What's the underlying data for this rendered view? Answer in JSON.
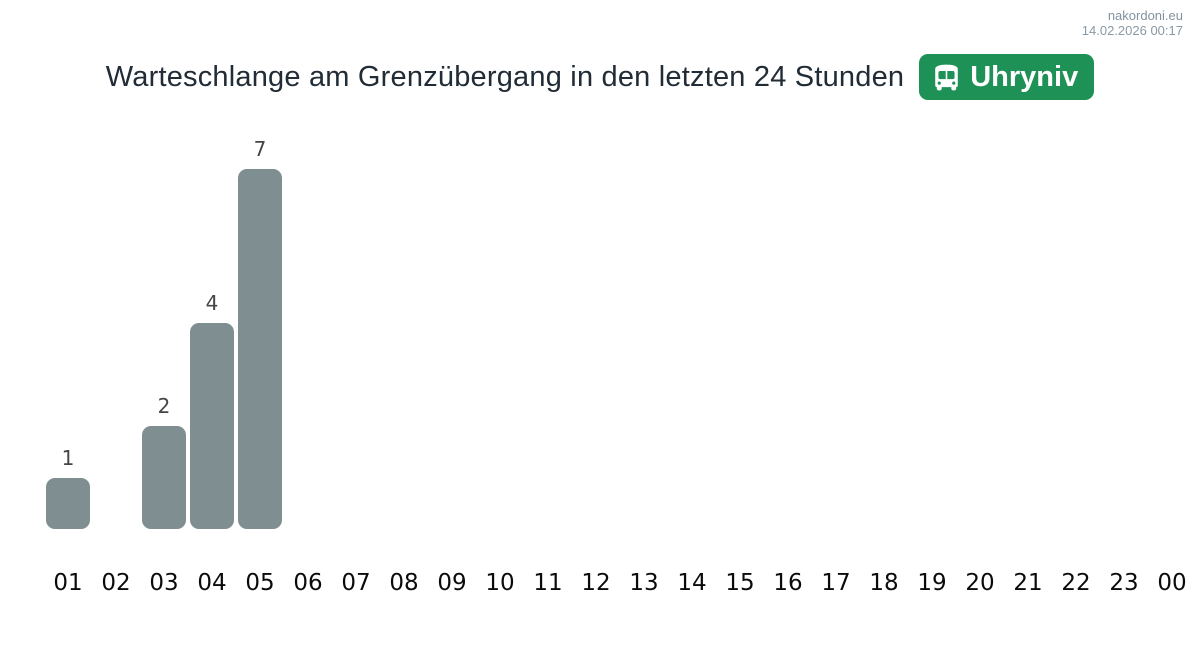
{
  "header": {
    "site": "nakordoni.eu",
    "timestamp": "14.02.2026 00:17"
  },
  "title": {
    "text": "Warteschlange am Grenzübergang in den letzten 24 Stunden",
    "badge": {
      "label": "Uhryniv",
      "icon": "bus-icon",
      "color": "#1e9156"
    }
  },
  "chart_data": {
    "type": "bar",
    "title": "Warteschlange am Grenzübergang in den letzten 24 Stunden",
    "categories": [
      "01",
      "02",
      "03",
      "04",
      "05",
      "06",
      "07",
      "08",
      "09",
      "10",
      "11",
      "12",
      "13",
      "14",
      "15",
      "16",
      "17",
      "18",
      "19",
      "20",
      "21",
      "22",
      "23",
      "00"
    ],
    "values": [
      1,
      0,
      2,
      4,
      7,
      0,
      0,
      0,
      0,
      0,
      0,
      0,
      0,
      0,
      0,
      0,
      0,
      0,
      0,
      0,
      0,
      0,
      0,
      0
    ],
    "xlabel": "",
    "ylabel": "",
    "ylim": [
      0,
      7.5
    ],
    "grid": false,
    "legend": false,
    "bar_color": "#7f8e90",
    "value_label_color": "#454545",
    "tick_label_color": "#0b0b0b",
    "value_labels_shown_for_nonzero_only": true
  }
}
